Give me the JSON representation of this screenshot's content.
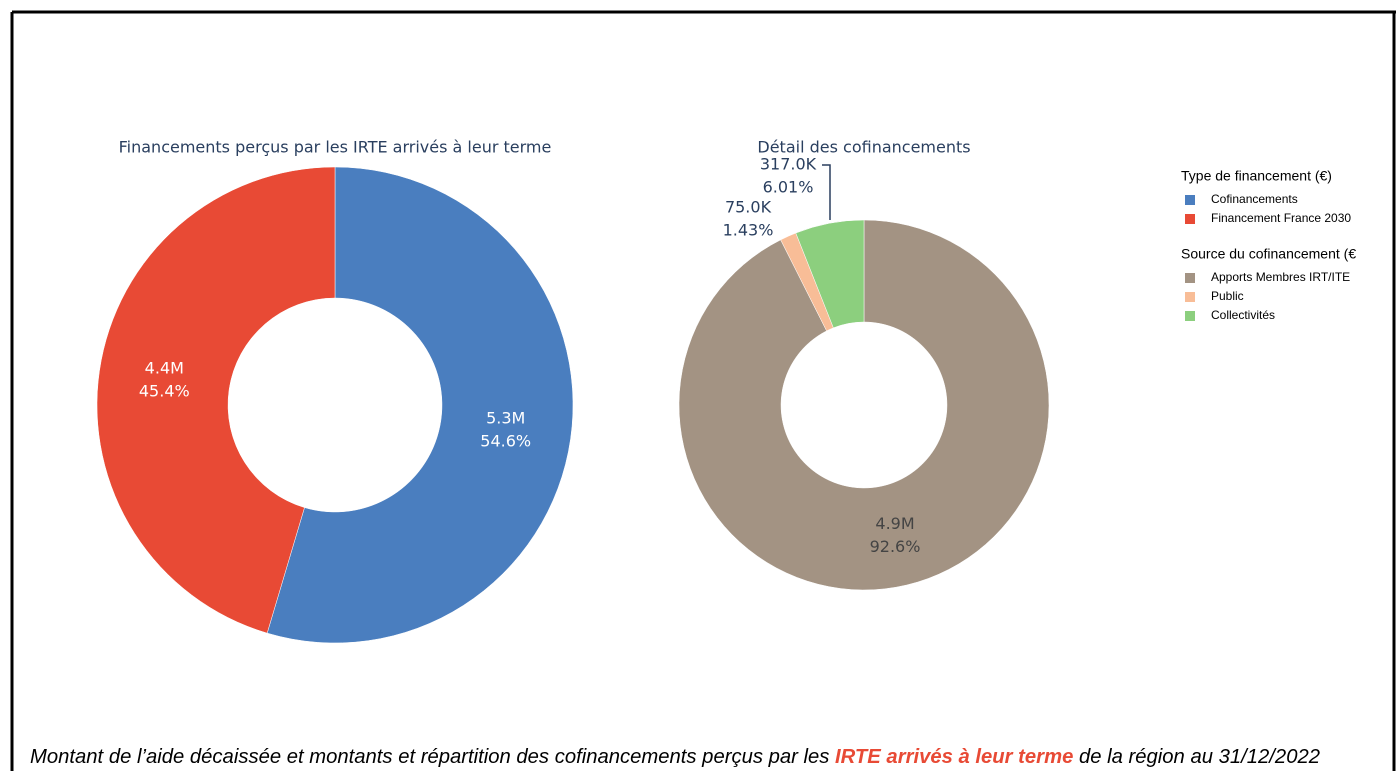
{
  "chart_data": [
    {
      "type": "pie",
      "title": "Financements perçus par les IRTE arrivés à leur terme",
      "legend_title": "Type de financement (€)",
      "categories": [
        "Cofinancements",
        "Financement France 2030"
      ],
      "values": [
        5300000,
        4400000
      ],
      "value_labels": [
        "5.3M",
        "4.4M"
      ],
      "percents": [
        54.6,
        45.4
      ],
      "percent_labels": [
        "54.6%",
        "45.4%"
      ],
      "colors": [
        "#4a7ebf",
        "#e84a35"
      ]
    },
    {
      "type": "pie",
      "title": "Détail des cofinancements",
      "legend_title": "Source du cofinancement (€",
      "categories": [
        "Apports Membres IRT/ITE",
        "Public",
        "Collectivités"
      ],
      "values": [
        4900000,
        75000,
        317000
      ],
      "value_labels": [
        "4.9M",
        "75.0K",
        "317.0K"
      ],
      "percents": [
        92.6,
        1.43,
        6.01
      ],
      "percent_labels": [
        "92.6%",
        "1.43%",
        "6.01%"
      ],
      "colors": [
        "#a39383",
        "#f8bd97",
        "#8ccf7e"
      ]
    }
  ],
  "caption": {
    "before": "Montant de l’aide décaissée et montants et répartition des cofinancements perçus par les ",
    "highlight": "IRTE arrivés à leur terme",
    "after": " de la région au 31/12/2022"
  }
}
